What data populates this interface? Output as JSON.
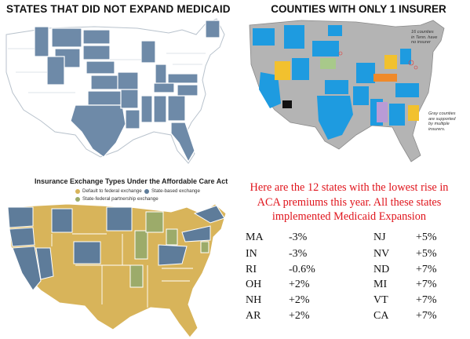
{
  "panels": {
    "top_left": {
      "title": "STATES THAT DID NOT EXPAND MEDICAID",
      "colors": {
        "not_expanded": "#6e8aa8",
        "expanded": "#ffffff",
        "border": "#b8c2cc"
      }
    },
    "top_right": {
      "title": "COUNTIES WITH ONLY 1 INSURER",
      "note_tn": "16 counties\nin Tenn. have\nno insurer",
      "note_gray": "Gray counties\nare supported\nby multiple\ninsurers.",
      "colors": {
        "single": "#1e9be0",
        "gray": "#b4b4b4",
        "yellow": "#f2c12e",
        "orange": "#f08a2a",
        "purple": "#b99bd6",
        "green": "#a8c98a",
        "black": "#111111"
      }
    },
    "bottom_left": {
      "title": "Insurance Exchange Types Under the Affordable Care Act",
      "legend": [
        {
          "label": "Default to federal exchange",
          "color": "#d8b45a"
        },
        {
          "label": "State-based exchange",
          "color": "#5e7c9a"
        },
        {
          "label": "State-federal partnership exchange",
          "color": "#9cab6a"
        }
      ]
    }
  },
  "headline": {
    "line1": "Here are the 12 states with the lowest rise in",
    "line2": "ACA premiums this year. All these states",
    "line3": "implemented Medicaid Expansion"
  },
  "premium_rises": {
    "left": [
      {
        "state": "MA",
        "change": "-3%"
      },
      {
        "state": "IN",
        "change": "-3%"
      },
      {
        "state": "RI",
        "change": "-0.6%"
      },
      {
        "state": "OH",
        "change": "+2%"
      },
      {
        "state": "NH",
        "change": "+2%"
      },
      {
        "state": "AR",
        "change": "+2%"
      }
    ],
    "right": [
      {
        "state": "NJ",
        "change": "+5%"
      },
      {
        "state": "NV",
        "change": "+5%"
      },
      {
        "state": "ND",
        "change": "+7%"
      },
      {
        "state": "MI",
        "change": "+7%"
      },
      {
        "state": "VT",
        "change": "+7%"
      },
      {
        "state": "CA",
        "change": "+7%"
      }
    ]
  }
}
